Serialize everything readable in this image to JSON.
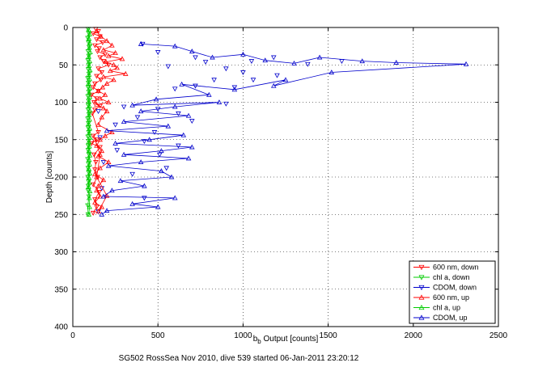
{
  "chart_data": {
    "type": "line",
    "caption": "SG502 RossSea Nov 2010, dive 539 started 06-Jan-2011 23:20:12",
    "xlabel_main": "b",
    "xlabel_sub": "b",
    "xlabel_rest": " Output [counts]",
    "ylabel": "Depth [counts]",
    "xlim": [
      0,
      2500
    ],
    "ylim": [
      0,
      400
    ],
    "y_reversed": true,
    "grid": true,
    "xticks": [
      "0",
      "500",
      "1000",
      "1500",
      "2000",
      "2500"
    ],
    "yticks": [
      "0",
      "50",
      "100",
      "150",
      "200",
      "250",
      "300",
      "350",
      "400"
    ],
    "legend_position": "bottom-right",
    "series": [
      {
        "name": "600 nm, down",
        "color": "#ff0000",
        "marker": "triangle-down",
        "x": [
          135,
          150,
          120,
          160,
          140,
          175,
          130,
          155,
          145,
          190,
          160,
          180,
          210,
          150,
          170,
          140,
          165,
          130,
          120,
          150,
          110,
          140,
          125,
          160,
          130,
          115,
          150,
          120,
          140,
          110,
          160,
          125,
          135,
          130,
          145,
          120,
          155,
          130,
          140,
          120
        ],
        "y": [
          2,
          5,
          8,
          12,
          16,
          20,
          24,
          28,
          32,
          36,
          40,
          45,
          50,
          55,
          60,
          65,
          70,
          75,
          80,
          85,
          90,
          95,
          100,
          105,
          110,
          115,
          140,
          145,
          150,
          155,
          160,
          170,
          180,
          190,
          200,
          210,
          220,
          230,
          240,
          248
        ]
      },
      {
        "name": "chl a, down",
        "color": "#00cc00",
        "marker": "triangle-down",
        "x": [
          90,
          95,
          88,
          92,
          96,
          90,
          94,
          89,
          93,
          91,
          95,
          88,
          92,
          90,
          94,
          89,
          93,
          91,
          90,
          95,
          88,
          92,
          90,
          94,
          89,
          93,
          91,
          90,
          95,
          88,
          92,
          90,
          94,
          89,
          93,
          91,
          90,
          95,
          88,
          90
        ],
        "y": [
          2,
          8,
          14,
          20,
          26,
          32,
          38,
          44,
          50,
          56,
          62,
          68,
          74,
          80,
          86,
          92,
          98,
          104,
          110,
          116,
          122,
          128,
          134,
          140,
          146,
          152,
          158,
          164,
          170,
          176,
          182,
          188,
          194,
          200,
          206,
          212,
          218,
          226,
          238,
          250
        ]
      },
      {
        "name": "CDOM, down",
        "color": "#0000cc",
        "marker": "triangle-down",
        "x": [
          410,
          500,
          720,
          900,
          1050,
          1180,
          1380,
          560,
          780,
          1000,
          1200,
          1580,
          830,
          1060,
          720,
          600,
          950,
          900,
          300,
          500,
          150,
          620,
          380,
          700,
          250,
          480,
          160,
          420,
          620,
          260,
          510,
          180,
          550,
          350,
          170,
          420,
          150
        ],
        "y": [
          22,
          33,
          40,
          55,
          45,
          40,
          49,
          52,
          46,
          60,
          64,
          45,
          70,
          70,
          78,
          82,
          80,
          102,
          106,
          109,
          112,
          115,
          120,
          125,
          130,
          140,
          147,
          152,
          158,
          164,
          170,
          180,
          188,
          196,
          215,
          228,
          246
        ]
      },
      {
        "name": "600 nm, up",
        "color": "#ff0000",
        "marker": "triangle-up",
        "x": [
          140,
          165,
          200,
          230,
          180,
          250,
          210,
          290,
          195,
          240,
          260,
          220,
          310,
          180,
          240,
          200,
          175,
          150,
          190,
          160,
          210,
          140,
          180,
          200,
          170,
          150,
          230,
          190,
          160,
          140,
          170,
          150,
          210,
          160,
          130,
          180,
          150,
          140,
          160,
          130,
          170,
          150,
          200,
          140,
          160,
          130
        ],
        "y": [
          5,
          12,
          18,
          24,
          30,
          34,
          38,
          42,
          46,
          50,
          54,
          58,
          62,
          66,
          70,
          75,
          80,
          85,
          90,
          95,
          100,
          103,
          108,
          112,
          120,
          130,
          140,
          145,
          150,
          158,
          165,
          172,
          180,
          188,
          196,
          204,
          212,
          218,
          226,
          234,
          240,
          246,
          225,
          200,
          170,
          150
        ]
      },
      {
        "name": "chl a, up",
        "color": "#00cc00",
        "marker": "triangle-up",
        "x": [
          92,
          98,
          95,
          100,
          97,
          102,
          94,
          99,
          96,
          101,
          95,
          98,
          93,
          100,
          96,
          99,
          94,
          97,
          100,
          95,
          98,
          93,
          99,
          96,
          101,
          94,
          97,
          95,
          100,
          96,
          98,
          94,
          99,
          95,
          97,
          93,
          100,
          96,
          98,
          94
        ],
        "y": [
          3,
          9,
          15,
          21,
          27,
          33,
          39,
          45,
          51,
          57,
          63,
          69,
          75,
          81,
          87,
          93,
          99,
          105,
          111,
          117,
          123,
          129,
          135,
          141,
          147,
          153,
          159,
          165,
          171,
          177,
          183,
          189,
          195,
          201,
          207,
          213,
          219,
          228,
          240,
          250
        ]
      },
      {
        "name": "CDOM, up",
        "color": "#0000cc",
        "marker": "triangle-up",
        "x": [
          400,
          600,
          700,
          820,
          1000,
          1130,
          1300,
          1450,
          1700,
          1900,
          2310,
          1520,
          1180,
          1250,
          950,
          640,
          800,
          490,
          350,
          860,
          600,
          400,
          680,
          300,
          560,
          200,
          650,
          450,
          250,
          700,
          520,
          300,
          680,
          400,
          210,
          520,
          580,
          280,
          420,
          230,
          180,
          600,
          350,
          500,
          200,
          170
        ],
        "y": [
          22,
          25,
          32,
          40,
          36,
          44,
          48,
          40,
          45,
          47,
          49,
          60,
          78,
          70,
          83,
          76,
          90,
          96,
          104,
          100,
          106,
          112,
          118,
          126,
          132,
          138,
          144,
          150,
          155,
          160,
          165,
          170,
          175,
          180,
          185,
          192,
          200,
          205,
          212,
          218,
          226,
          228,
          236,
          240,
          245,
          250
        ]
      }
    ]
  }
}
